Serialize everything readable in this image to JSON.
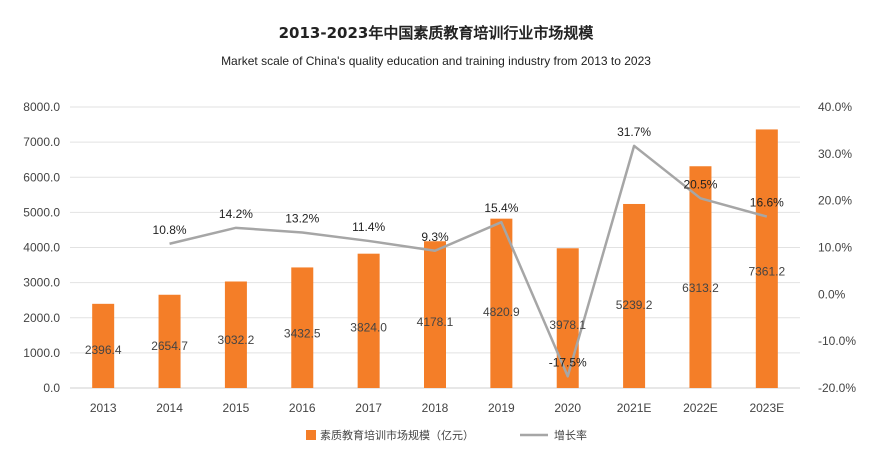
{
  "chart_data": {
    "type": "bar",
    "title": "2013-2023年中国素质教育培训行业市场规模",
    "subtitle": "Market scale of China's quality education and training industry from 2013 to 2023",
    "categories": [
      "2013",
      "2014",
      "2015",
      "2016",
      "2017",
      "2018",
      "2019",
      "2020",
      "2021E",
      "2022E",
      "2023E"
    ],
    "series": [
      {
        "name": "素质教育培训市场规模（亿元）",
        "type": "bar",
        "axis": "left",
        "color": "#f47e28",
        "values": [
          2396.4,
          2654.7,
          3032.2,
          3432.5,
          3824.0,
          4178.1,
          4820.9,
          3978.1,
          5239.2,
          6313.2,
          7361.2
        ],
        "labels": [
          "2396.4",
          "2654.7",
          "3032.2",
          "3432.5",
          "3824.0",
          "4178.1",
          "4820.9",
          "3978.1",
          "5239.2",
          "6313.2",
          "7361.2"
        ]
      },
      {
        "name": "增长率",
        "type": "line",
        "axis": "right",
        "color": "#a6a6a6",
        "values": [
          null,
          10.8,
          14.2,
          13.2,
          11.4,
          9.3,
          15.4,
          -17.5,
          31.7,
          20.5,
          16.6
        ],
        "labels": [
          "",
          "10.8%",
          "14.2%",
          "13.2%",
          "11.4%",
          "9.3%",
          "15.4%",
          "-17.5%",
          "31.7%",
          "20.5%",
          "16.6%"
        ]
      }
    ],
    "y_left": {
      "min": 0,
      "max": 8000,
      "ticks": [
        "0.0",
        "1000.0",
        "2000.0",
        "3000.0",
        "4000.0",
        "5000.0",
        "6000.0",
        "7000.0",
        "8000.0"
      ]
    },
    "y_right": {
      "min": -20,
      "max": 40,
      "ticks": [
        "-20.0%",
        "-10.0%",
        "0.0%",
        "10.0%",
        "20.0%",
        "30.0%",
        "40.0%"
      ]
    },
    "grid": true,
    "legend_position": "bottom-right"
  }
}
